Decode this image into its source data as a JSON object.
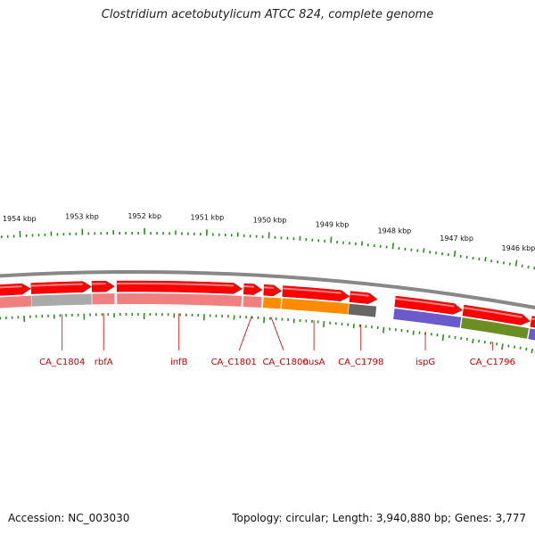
{
  "title": "Clostridium acetobutylicum ATCC 824, complete genome",
  "footer": {
    "accession": "Accession: NC_003030",
    "summary": "Topology: circular; Length: 3,940,880 bp; Genes: 3,777"
  },
  "colors": {
    "gene": "#ff0000",
    "tick": "#2e8b22",
    "backbone": "#888888",
    "label": "#cc0000"
  },
  "ruler": [
    {
      "kbp": 1954,
      "label": "1954 kbp"
    },
    {
      "kbp": 1953,
      "label": "1953 kbp"
    },
    {
      "kbp": 1952,
      "label": "1952 kbp"
    },
    {
      "kbp": 1951,
      "label": "1951 kbp"
    },
    {
      "kbp": 1950,
      "label": "1950 kbp"
    },
    {
      "kbp": 1949,
      "label": "1949 kbp"
    },
    {
      "kbp": 1948,
      "label": "1948 kbp"
    },
    {
      "kbp": 1947,
      "label": "1947 kbp"
    },
    {
      "kbp": 1946,
      "label": "1946 kbp"
    }
  ],
  "genes": [
    {
      "name": "",
      "start_kbp": 1954.42,
      "end_kbp": 1953.87,
      "func_color": "#f08080"
    },
    {
      "name": "CA_C1804",
      "start_kbp": 1953.86,
      "end_kbp": 1952.87,
      "func_color": "#aaaaaa"
    },
    {
      "name": "rbfA",
      "start_kbp": 1952.86,
      "end_kbp": 1952.49,
      "func_color": "#f08080"
    },
    {
      "name": "infB",
      "start_kbp": 1952.45,
      "end_kbp": 1950.39,
      "func_color": "#f08080"
    },
    {
      "name": "CA_C1801",
      "start_kbp": 1950.36,
      "end_kbp": 1950.06,
      "func_color": "#f08080"
    },
    {
      "name": "CA_C1800",
      "start_kbp": 1950.03,
      "end_kbp": 1949.74,
      "func_color": "#ff8c00"
    },
    {
      "name": "nusA",
      "start_kbp": 1949.72,
      "end_kbp": 1948.62,
      "func_color": "#ff8c00"
    },
    {
      "name": "CA_C1798",
      "start_kbp": 1948.61,
      "end_kbp": 1948.16,
      "func_color": "#666666"
    },
    {
      "name": "ispG",
      "start_kbp": 1947.86,
      "end_kbp": 1946.75,
      "func_color": "#6a5acd"
    },
    {
      "name": "CA_C1796",
      "start_kbp": 1946.73,
      "end_kbp": 1945.62,
      "func_color": "#6b8e23"
    },
    {
      "name": "",
      "start_kbp": 1945.6,
      "end_kbp": 1945.3,
      "func_color": "#6a5acd"
    }
  ]
}
